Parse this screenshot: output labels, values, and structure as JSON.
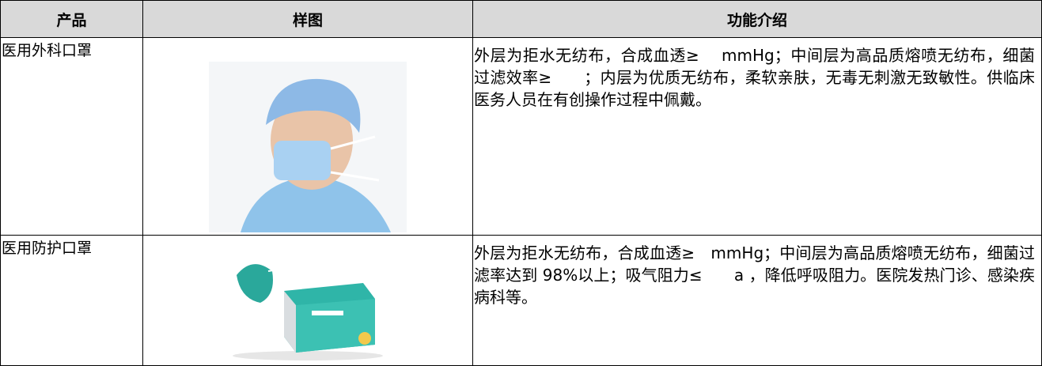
{
  "table": {
    "header": [
      "产品",
      "样图",
      "功能介绍"
    ],
    "rows": [
      [
        "医用外科口罩",
        "外层为拒水无纺布，合成血透≥　 mmHg；中间层为高品质熔喷无纺布，细菌过滤效率≥　　；内层为优质无纺布，柔软亲肤，无毒无刺激无致敏性。供临床医务人员在有创操作过程中佩戴。"
      ],
      [
        "医用防护口罩",
        "外层为拒水无纺布，合成血透≥　mmHg；中间层为高品质熔喷无纺布，细菌过滤率达到 98%以上；吸气阻力≤　　a ，降低呼吸阻力。医院发热门诊、感染疾病科等。"
      ]
    ]
  }
}
